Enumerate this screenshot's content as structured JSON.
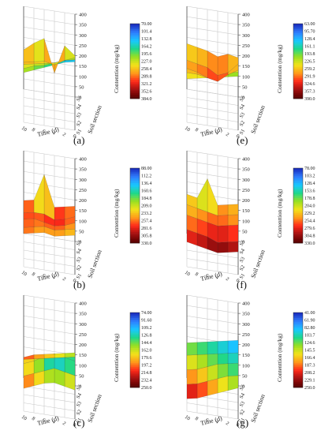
{
  "colors": {
    "grid": "#c9c9c9",
    "axis": "#555555",
    "surface_stops": [
      "#1a2fbf",
      "#2f7fff",
      "#19c8ff",
      "#1fd88a",
      "#9be021",
      "#f2e21a",
      "#ff9a1a",
      "#ff2a1a",
      "#a31010",
      "#5a0000"
    ]
  },
  "shared": {
    "z_ticks": [
      "0",
      "50",
      "100",
      "150",
      "200",
      "250",
      "300",
      "350",
      "400"
    ],
    "time_ticks": [
      "0",
      "2",
      "4",
      "6",
      "8",
      "10"
    ],
    "soil_ticks": [
      "S1",
      "S2",
      "S3",
      "S4",
      "S5"
    ],
    "time_label": "Time (d)",
    "soil_label": "Soil section",
    "z_label": "Contenttion (mg/kg)"
  },
  "chart_data": [
    {
      "type": "surface3d",
      "panel": "(a)",
      "x_label": "Time (d)",
      "y_label": "Soil section",
      "z_label": "Contenttion (mg/kg)",
      "x": [
        0,
        2,
        4,
        6,
        8,
        10
      ],
      "y": [
        "S1",
        "S2",
        "S3",
        "S4",
        "S5"
      ],
      "zlim": [
        0,
        400
      ],
      "z": [
        [
          330,
          300,
          260,
          230,
          200
        ],
        [
          320,
          290,
          250,
          210,
          240
        ],
        [
          300,
          270,
          230,
          180,
          100
        ],
        [
          280,
          250,
          220,
          190,
          260
        ],
        [
          260,
          240,
          210,
          180,
          230
        ],
        [
          240,
          220,
          200,
          170,
          190
        ]
      ],
      "colorbar": {
        "ticks": [
          "70.00",
          "101.4",
          "132.8",
          "164.2",
          "195.6",
          "227.0",
          "258.4",
          "289.8",
          "321.2",
          "352.6",
          "384.0"
        ],
        "min": 70,
        "max": 384
      }
    },
    {
      "type": "surface3d",
      "panel": "(e)",
      "x_label": "Time (d)",
      "y_label": "Soil section",
      "z_label": "Contenttion (mg/kg)",
      "x": [
        0,
        2,
        4,
        6,
        8,
        10
      ],
      "y": [
        "S1",
        "S2",
        "S3",
        "S4",
        "S5"
      ],
      "zlim": [
        0,
        400
      ],
      "z": [
        [
          260,
          240,
          210,
          200,
          190
        ],
        [
          250,
          230,
          180,
          150,
          200
        ],
        [
          240,
          200,
          140,
          130,
          180
        ],
        [
          230,
          190,
          150,
          160,
          200
        ],
        [
          220,
          200,
          170,
          170,
          210
        ],
        [
          210,
          200,
          180,
          180,
          220
        ]
      ],
      "colorbar": {
        "ticks": [
          "63.00",
          "95.70",
          "128.4",
          "161.1",
          "193.8",
          "226.5",
          "259.2",
          "291.9",
          "324.6",
          "357.3",
          "390.0"
        ],
        "min": 63,
        "max": 390
      }
    },
    {
      "type": "surface3d",
      "panel": "(b)",
      "x_label": "Time (d)",
      "y_label": "Soil section",
      "z_label": "Contenttion (mg/kg)",
      "x": [
        0,
        2,
        4,
        6,
        8,
        10
      ],
      "y": [
        "S1",
        "S2",
        "S3",
        "S4",
        "S5"
      ],
      "zlim": [
        0,
        400
      ],
      "z": [
        [
          190,
          180,
          170,
          160,
          170
        ],
        [
          180,
          170,
          150,
          140,
          160
        ],
        [
          170,
          160,
          140,
          130,
          150
        ],
        [
          180,
          170,
          150,
          150,
          300
        ],
        [
          170,
          160,
          160,
          150,
          170
        ],
        [
          160,
          150,
          150,
          140,
          160
        ]
      ],
      "colorbar": {
        "ticks": [
          "88.00",
          "112.2",
          "136.4",
          "160.6",
          "184.8",
          "209.0",
          "233.2",
          "257.4",
          "281.6",
          "305.8",
          "330.0"
        ],
        "min": 88,
        "max": 330
      }
    },
    {
      "type": "surface3d",
      "panel": "(f)",
      "x_label": "Time (d)",
      "y_label": "Soil section",
      "z_label": "Contenttion (mg/kg)",
      "x": [
        0,
        2,
        4,
        6,
        8,
        10
      ],
      "y": [
        "S1",
        "S2",
        "S3",
        "S4",
        "S5"
      ],
      "zlim": [
        0,
        400
      ],
      "z": [
        [
          110,
          120,
          160,
          170,
          180
        ],
        [
          100,
          110,
          150,
          160,
          170
        ],
        [
          90,
          100,
          140,
          150,
          160
        ],
        [
          100,
          120,
          150,
          160,
          280
        ],
        [
          110,
          130,
          160,
          170,
          180
        ],
        [
          120,
          140,
          170,
          180,
          190
        ]
      ],
      "colorbar": {
        "ticks": [
          "78.00",
          "103.2",
          "128.4",
          "153.6",
          "178.8",
          "204.0",
          "229.2",
          "254.4",
          "279.6",
          "304.8",
          "330.0"
        ],
        "min": 78,
        "max": 330
      }
    },
    {
      "type": "surface3d",
      "panel": "(c)",
      "x_label": "Time (d)",
      "y_label": "Soil section",
      "z_label": "Contenttion (mg/kg)",
      "x": [
        0,
        2,
        4,
        6,
        8,
        10
      ],
      "y": [
        "S1",
        "S2",
        "S3",
        "S4",
        "S5"
      ],
      "zlim": [
        0,
        400
      ],
      "z": [
        [
          140,
          170,
          200,
          180,
          160
        ],
        [
          150,
          180,
          210,
          170,
          150
        ],
        [
          160,
          190,
          220,
          160,
          140
        ],
        [
          150,
          170,
          200,
          150,
          130
        ],
        [
          130,
          150,
          170,
          140,
          120
        ],
        [
          110,
          130,
          150,
          130,
          100
        ]
      ],
      "colorbar": {
        "ticks": [
          "74.00",
          "91.60",
          "109.2",
          "126.8",
          "144.4",
          "162.0",
          "179.6",
          "197.2",
          "214.8",
          "232.4",
          "250.0"
        ],
        "min": 74,
        "max": 250
      }
    },
    {
      "type": "surface3d",
      "panel": "(g)",
      "x_label": "Time (d)",
      "y_label": "Soil section",
      "z_label": "Contenttion (mg/kg)",
      "x": [
        0,
        2,
        4,
        6,
        8,
        10
      ],
      "y": [
        "S1",
        "S2",
        "S3",
        "S4",
        "S5"
      ],
      "zlim": [
        0,
        400
      ],
      "z": [
        [
          150,
          170,
          190,
          200,
          220
        ],
        [
          130,
          160,
          180,
          190,
          210
        ],
        [
          110,
          140,
          170,
          180,
          200
        ],
        [
          90,
          120,
          150,
          170,
          190
        ],
        [
          70,
          100,
          130,
          160,
          180
        ],
        [
          60,
          90,
          120,
          150,
          170
        ]
      ],
      "colorbar": {
        "ticks": [
          "41.00",
          "61.90",
          "82.80",
          "103.7",
          "124.6",
          "145.5",
          "166.4",
          "187.3",
          "208.2",
          "229.1",
          "250.0"
        ],
        "min": 41,
        "max": 250
      }
    }
  ]
}
